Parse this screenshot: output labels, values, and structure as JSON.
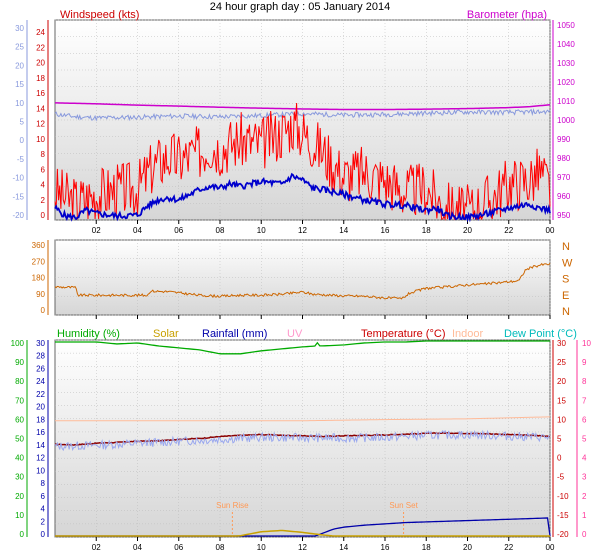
{
  "title": "24 hour graph day : 05 January 2014",
  "x_ticks": [
    "02",
    "04",
    "06",
    "08",
    "10",
    "12",
    "14",
    "16",
    "18",
    "20",
    "22",
    "00"
  ],
  "colors": {
    "wind_gust": "#ff0000",
    "wind_avg": "#0000cc",
    "barometer": "#cc00cc",
    "temperature": "#8b0000",
    "wind_dir": "#cc6600",
    "humidity": "#00aa00",
    "solar": "#c8a000",
    "rainfall": "#0000aa",
    "uv": "#ff99cc",
    "indoor": "#ffbb99",
    "dewpoint": "#00bbbb",
    "axis_left_outer": "#8899dd",
    "axis_right_outer": "#ff3399",
    "axis_dir": "#cc6600",
    "axis_humidity": "#00aa00",
    "axis_temperature": "#cc0000",
    "axis_wind": "#cc0000",
    "axis_baro": "#cc00cc",
    "grid": "#bbbbbb",
    "plot_top": "#ffffff",
    "plot_bottom": "#d6d6d6"
  },
  "chart_data": [
    {
      "type": "line",
      "title": "",
      "labels": {
        "left": "Windspeed (kts)",
        "right": "Barometer (hpa)"
      },
      "outer_left_ticks": [
        "30",
        "25",
        "20",
        "15",
        "10",
        "5",
        "0",
        "-5",
        "-10",
        "-15",
        "-20"
      ],
      "ylim_left": [
        0,
        25
      ],
      "left_ticks": [
        "24",
        "22",
        "20",
        "18",
        "16",
        "14",
        "12",
        "10",
        "8",
        "6",
        "4",
        "2",
        "0"
      ],
      "ylim_right": [
        947,
        1052
      ],
      "right_ticks": [
        "1050",
        "1040",
        "1030",
        "1020",
        "1010",
        "1000",
        "990",
        "980",
        "970",
        "960",
        "950"
      ],
      "x_hours": [
        0,
        24
      ],
      "series": [
        {
          "key": "barometer",
          "axis": "right",
          "values": [
            [
              0,
              1008.5
            ],
            [
              2,
              1008
            ],
            [
              4,
              1007.3
            ],
            [
              6,
              1006.8
            ],
            [
              8,
              1006.2
            ],
            [
              10,
              1005.7
            ],
            [
              12,
              1005.3
            ],
            [
              14,
              1005
            ],
            [
              16,
              1005
            ],
            [
              18,
              1005.2
            ],
            [
              20,
              1005.5
            ],
            [
              22,
              1006
            ],
            [
              23,
              1006.5
            ],
            [
              24,
              1007.5
            ]
          ]
        },
        {
          "key": "temperature",
          "axis": "outer",
          "values": [
            [
              0,
              6.5
            ],
            [
              1,
              5.8
            ],
            [
              2,
              5.5
            ],
            [
              4,
              5.7
            ],
            [
              6,
              6
            ],
            [
              8,
              5.8
            ],
            [
              10,
              6.1
            ],
            [
              12,
              6.6
            ],
            [
              14,
              6.2
            ],
            [
              16,
              6.4
            ],
            [
              18,
              6.7
            ],
            [
              20,
              7
            ],
            [
              22,
              6.9
            ],
            [
              24,
              7.1
            ]
          ]
        },
        {
          "key": "wind_gust",
          "axis": "left",
          "values": [
            [
              0,
              3.5
            ],
            [
              1,
              2.2
            ],
            [
              2,
              3.2
            ],
            [
              3,
              3.8
            ],
            [
              4,
              4
            ],
            [
              4.8,
              6.8
            ],
            [
              5.5,
              8
            ],
            [
              6,
              7.5
            ],
            [
              7,
              8.5
            ],
            [
              7.5,
              9.5
            ],
            [
              8,
              9
            ],
            [
              8.5,
              9.5
            ],
            [
              9,
              10
            ],
            [
              10,
              9.5
            ],
            [
              11,
              11
            ],
            [
              11.5,
              12
            ],
            [
              12,
              11
            ],
            [
              13,
              8.5
            ],
            [
              14,
              5.5
            ],
            [
              15,
              6
            ],
            [
              16,
              5
            ],
            [
              17,
              3.5
            ],
            [
              18,
              4
            ],
            [
              18.5,
              2.5
            ],
            [
              19,
              1.5
            ],
            [
              20,
              1
            ],
            [
              21,
              2.5
            ],
            [
              22,
              4.5
            ],
            [
              23,
              5
            ],
            [
              23.5,
              6
            ],
            [
              24,
              4
            ]
          ]
        },
        {
          "key": "wind_avg",
          "axis": "left",
          "values": [
            [
              0,
              1.5
            ],
            [
              0.5,
              0.5
            ],
            [
              1,
              0.3
            ],
            [
              1.5,
              1.2
            ],
            [
              2,
              0.8
            ],
            [
              3,
              0.5
            ],
            [
              4,
              0.6
            ],
            [
              4.5,
              1.8
            ],
            [
              5,
              2.5
            ],
            [
              5.5,
              2.8
            ],
            [
              6,
              2.5
            ],
            [
              7,
              3.8
            ],
            [
              7.5,
              4.2
            ],
            [
              8,
              4
            ],
            [
              8.5,
              4.5
            ],
            [
              9,
              4.2
            ],
            [
              10,
              4.8
            ],
            [
              11,
              4.5
            ],
            [
              11.5,
              5.5
            ],
            [
              12,
              5
            ],
            [
              12.5,
              4
            ],
            [
              13,
              3.8
            ],
            [
              14,
              3.2
            ],
            [
              15,
              2.5
            ],
            [
              16,
              2
            ],
            [
              17,
              1.8
            ],
            [
              18,
              1.2
            ],
            [
              18.5,
              1.5
            ],
            [
              19,
              0.5
            ],
            [
              20,
              0.3
            ],
            [
              21,
              0.8
            ],
            [
              22,
              1.5
            ],
            [
              23,
              2
            ],
            [
              23.5,
              1.5
            ],
            [
              24,
              1.2
            ]
          ]
        }
      ]
    },
    {
      "type": "line",
      "title": "",
      "left_ticks": [
        "360",
        "270",
        "180",
        "90",
        "0"
      ],
      "ylim_left": [
        0,
        360
      ],
      "right_ticks": [
        "N",
        "W",
        "S",
        "E",
        "N"
      ],
      "x_hours": [
        0,
        24
      ],
      "series": [
        {
          "key": "wind_dir",
          "axis": "left",
          "values": [
            [
              0,
              135
            ],
            [
              1,
              132
            ],
            [
              1.1,
              95
            ],
            [
              4.5,
              95
            ],
            [
              4.6,
              115
            ],
            [
              5.5,
              112
            ],
            [
              7,
              95
            ],
            [
              8,
              90
            ],
            [
              9,
              95
            ],
            [
              10,
              95
            ],
            [
              11,
              100
            ],
            [
              12,
              110
            ],
            [
              12.5,
              100
            ],
            [
              14,
              92
            ],
            [
              15,
              90
            ],
            [
              16,
              82
            ],
            [
              16.8,
              78
            ],
            [
              17.2,
              105
            ],
            [
              18,
              128
            ],
            [
              19,
              135
            ],
            [
              20,
              145
            ],
            [
              21,
              150
            ],
            [
              22,
              160
            ],
            [
              22.5,
              165
            ],
            [
              22.8,
              215
            ],
            [
              23,
              225
            ],
            [
              23.5,
              240
            ],
            [
              24,
              245
            ]
          ]
        }
      ]
    },
    {
      "type": "line",
      "title": "",
      "legend": [
        "Humidity (%)",
        "Solar",
        "Rainfall (mm)",
        "UV",
        "Temperature (°C)",
        "Indoor",
        "Dew Point (°C)"
      ],
      "outer_left_ticks": [
        "100",
        "90",
        "80",
        "70",
        "60",
        "50",
        "40",
        "30",
        "20",
        "10",
        "0"
      ],
      "left_ticks": [
        "30",
        "28",
        "26",
        "24",
        "22",
        "20",
        "18",
        "16",
        "14",
        "12",
        "10",
        "8",
        "6",
        "4",
        "2",
        "0"
      ],
      "ylim_left": [
        0,
        30
      ],
      "right_ticks": [
        "30",
        "25",
        "20",
        "15",
        "10",
        "5",
        "0",
        "-5",
        "-10",
        "-15",
        "-20"
      ],
      "ylim_right": [
        -20,
        30
      ],
      "outer_right_ticks": [
        "10",
        "9",
        "8",
        "7",
        "6",
        "5",
        "4",
        "3",
        "2",
        "1",
        "0"
      ],
      "annotations": [
        "Sun Rise",
        "Sun Set"
      ],
      "x_hours": [
        0,
        24
      ],
      "series": [
        {
          "key": "humidity",
          "axis": "outer",
          "values": [
            [
              0,
              99
            ],
            [
              2,
              99
            ],
            [
              3,
              98
            ],
            [
              4,
              98.5
            ],
            [
              5,
              97
            ],
            [
              6,
              96
            ],
            [
              7,
              95
            ],
            [
              8,
              93
            ],
            [
              9,
              93
            ],
            [
              10,
              94.5
            ],
            [
              11,
              95.5
            ],
            [
              12,
              96.5
            ],
            [
              12.7,
              97
            ],
            [
              12.75,
              101
            ],
            [
              12.8,
              97
            ],
            [
              13,
              97
            ],
            [
              14,
              97.5
            ],
            [
              15,
              98.5
            ],
            [
              16,
              99
            ],
            [
              17,
              99
            ],
            [
              18,
              99.5
            ],
            [
              20,
              99.5
            ],
            [
              24,
              99.5
            ]
          ]
        },
        {
          "key": "indoor",
          "axis": "right",
          "values": [
            [
              0,
              9.5
            ],
            [
              6,
              9.5
            ],
            [
              12,
              9.5
            ],
            [
              16,
              9.8
            ],
            [
              20,
              10
            ],
            [
              24,
              10.5
            ]
          ]
        },
        {
          "key": "temperature",
          "axis": "right",
          "values": [
            [
              0,
              3.5
            ],
            [
              1,
              3.4
            ],
            [
              2,
              3.8
            ],
            [
              3,
              4
            ],
            [
              4,
              4.3
            ],
            [
              5,
              4.4
            ],
            [
              6,
              4.8
            ],
            [
              7,
              5
            ],
            [
              8,
              5.5
            ],
            [
              9,
              5.8
            ],
            [
              10,
              6
            ],
            [
              11,
              5.8
            ],
            [
              12,
              5.7
            ],
            [
              13,
              5.5
            ],
            [
              14,
              5.7
            ],
            [
              15,
              5.8
            ],
            [
              16,
              5.9
            ],
            [
              17,
              6.1
            ],
            [
              18,
              6.3
            ],
            [
              19,
              6.4
            ],
            [
              20,
              6.3
            ],
            [
              21,
              6.2
            ],
            [
              22,
              6
            ],
            [
              23,
              5.8
            ],
            [
              24,
              5.6
            ]
          ]
        },
        {
          "key": "dewpoint",
          "axis": "right",
          "values": [
            [
              0,
              3
            ],
            [
              2,
              3.3
            ],
            [
              4,
              3.8
            ],
            [
              6,
              4.3
            ],
            [
              8,
              4.8
            ],
            [
              10,
              5.3
            ],
            [
              12,
              5.2
            ],
            [
              14,
              5.1
            ],
            [
              16,
              5.3
            ],
            [
              18,
              5.8
            ],
            [
              20,
              6
            ],
            [
              22,
              5.6
            ],
            [
              24,
              5.3
            ]
          ]
        },
        {
          "key": "rainfall",
          "axis": "left",
          "values": [
            [
              0,
              0
            ],
            [
              12.5,
              0
            ],
            [
              13,
              0.6
            ],
            [
              13.5,
              1.2
            ],
            [
              14,
              1.5
            ],
            [
              15,
              1.8
            ],
            [
              16,
              2
            ],
            [
              17,
              2.2
            ],
            [
              18,
              2.3
            ],
            [
              19,
              2.4
            ],
            [
              20,
              2.5
            ],
            [
              21,
              2.6
            ],
            [
              22,
              2.7
            ],
            [
              23,
              2.8
            ],
            [
              23.9,
              2.9
            ],
            [
              24,
              0
            ]
          ]
        },
        {
          "key": "solar",
          "axis": "left",
          "values": [
            [
              0,
              0
            ],
            [
              8,
              0
            ],
            [
              9,
              0.2
            ],
            [
              10,
              0.8
            ],
            [
              11,
              1
            ],
            [
              12,
              0.7
            ],
            [
              13,
              0.3
            ],
            [
              14,
              0
            ],
            [
              24,
              0
            ]
          ]
        }
      ]
    }
  ]
}
